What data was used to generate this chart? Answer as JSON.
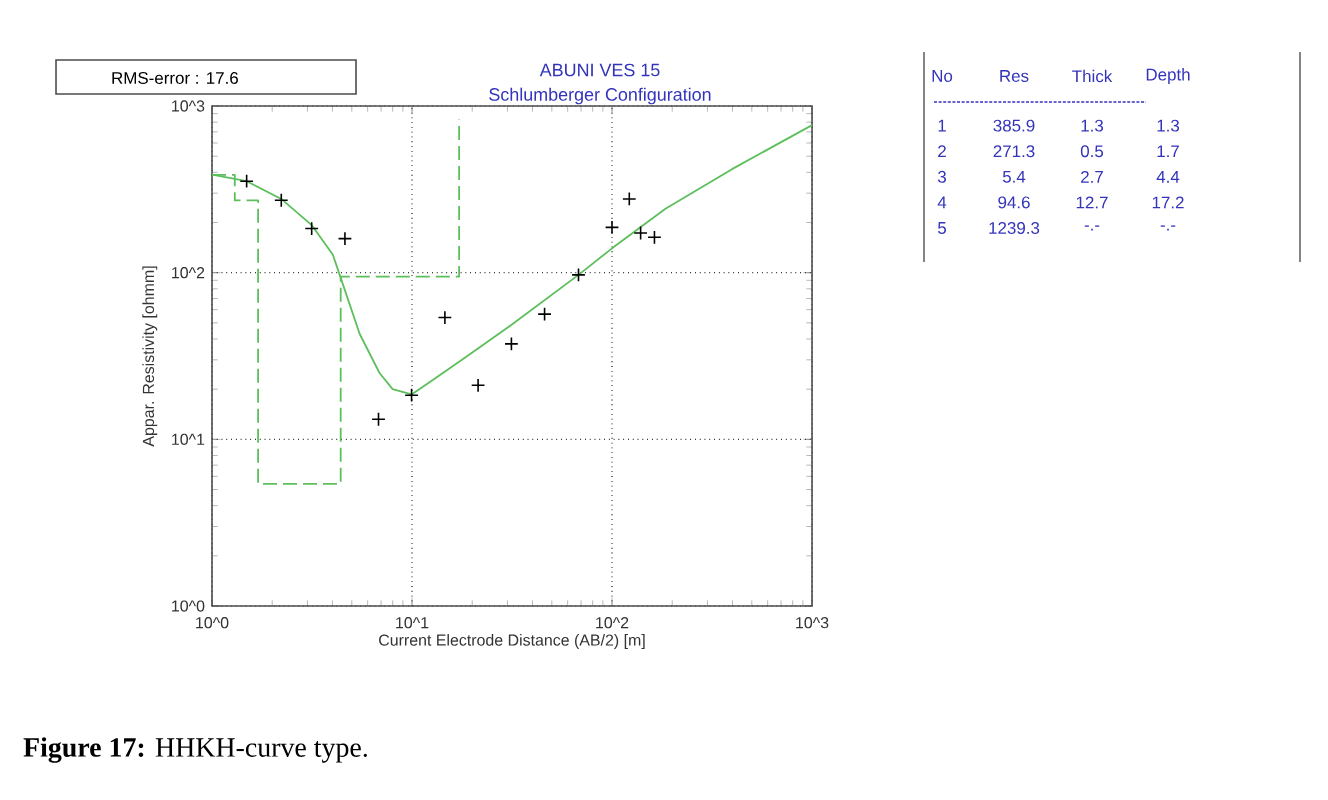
{
  "chart_data": {
    "type": "line",
    "title": "ABUNI VES 15",
    "subtitle": "Schlumberger Configuration",
    "xlabel": "Current Electrode Distance (AB/2) [m]",
    "ylabel": "Appar. Resistivity [ohmm]",
    "log": "xy",
    "grid": true,
    "xlim": [
      1,
      1000
    ],
    "ylim": [
      1,
      1000
    ],
    "xticks": [
      {
        "value": 1,
        "label": "10^0"
      },
      {
        "value": 10,
        "label": "10^1"
      },
      {
        "value": 100,
        "label": "10^2"
      },
      {
        "value": 1000,
        "label": "10^3"
      }
    ],
    "yticks": [
      {
        "value": 1,
        "label": "10^0"
      },
      {
        "value": 10,
        "label": "10^1"
      },
      {
        "value": 100,
        "label": "10^2"
      },
      {
        "value": 1000,
        "label": "10^3"
      }
    ],
    "series": [
      {
        "color": "#5cbf5c",
        "line_style": "solid",
        "x": [
          1,
          1.49,
          2.22,
          3.15,
          4.02,
          4.35,
          5.47,
          6.88,
          8.0,
          9.95,
          12.7,
          18.6,
          31.7,
          68,
          100,
          185,
          398,
          1000
        ],
        "values": [
          388,
          354,
          277,
          193,
          128,
          97,
          43,
          25,
          20,
          18.6,
          22.7,
          31.2,
          49,
          97,
          140,
          242,
          418,
          768
        ]
      },
      {
        "color": "#5cbf5c",
        "line_style": "dashed",
        "x": [
          1,
          1.3,
          1.3,
          1.7,
          1.7,
          4.4,
          4.4,
          17.2,
          17.2
        ],
        "values": [
          385.9,
          385.9,
          271.3,
          271.3,
          5.4,
          5.4,
          94.6,
          94.6,
          830
        ]
      },
      {
        "type": "scatter",
        "color": "#000000",
        "marker": "cross",
        "x": [
          1.49,
          2.22,
          3.15,
          4.62,
          6.8,
          9.95,
          14.6,
          21.4,
          31.4,
          46,
          68,
          100,
          122,
          139,
          163
        ],
        "values": [
          354,
          272,
          184,
          160,
          13.2,
          18.4,
          53.8,
          21.1,
          37.4,
          56.4,
          97,
          187,
          277,
          173,
          163
        ]
      }
    ],
    "annotations": [
      "RMS-error :  17.6",
      "No   Res  Thick  Depth",
      "1  385.9    1.3    1.3",
      "2  271.3    0.5    1.7",
      "3    5.4    2.7    4.4",
      "4   94.6   12.7   17.2",
      "5  1239.3   -.-    -.-",
      "**Figure 17:** HHKH-curve type."
    ]
  }
}
